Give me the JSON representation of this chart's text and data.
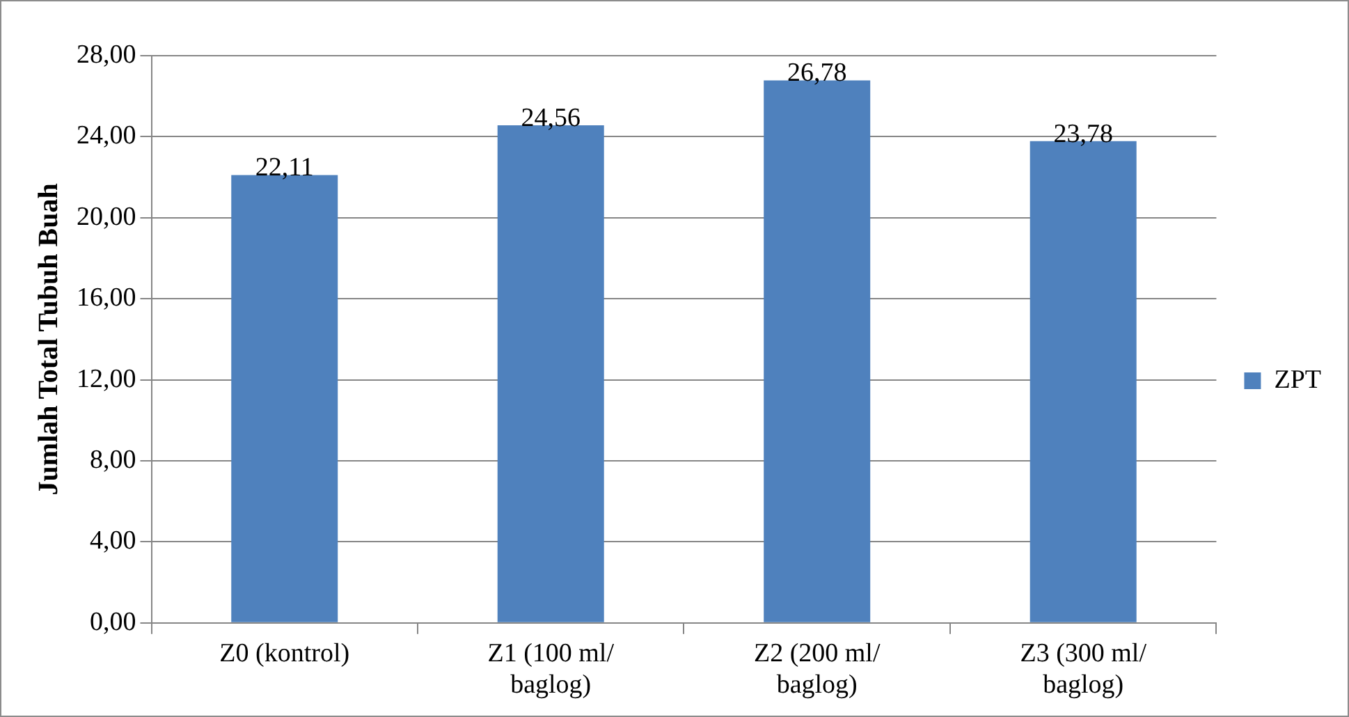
{
  "chart_data": {
    "type": "bar",
    "ylabel": "Jumlah Total Tubuh Buah",
    "categories": [
      "Z0 (kontrol)",
      "Z1 (100 ml/ baglog)",
      "Z2 (200 ml/ baglog)",
      "Z3 (300 ml/ baglog)"
    ],
    "series": [
      {
        "name": "ZPT",
        "color": "#4f81bd",
        "values": [
          22.11,
          24.56,
          26.78,
          23.78
        ],
        "value_labels": [
          "22,11",
          "24,56",
          "26,78",
          "23,78"
        ]
      }
    ],
    "ylim": [
      0,
      28
    ],
    "yticks": [
      {
        "value": 0,
        "label": "0,00"
      },
      {
        "value": 4,
        "label": "4,00"
      },
      {
        "value": 8,
        "label": "8,00"
      },
      {
        "value": 12,
        "label": "12,00"
      },
      {
        "value": 16,
        "label": "16,00"
      },
      {
        "value": 20,
        "label": "20,00"
      },
      {
        "value": 24,
        "label": "24,00"
      },
      {
        "value": 28,
        "label": "28,00"
      }
    ],
    "grid": "y",
    "legend": "right"
  }
}
